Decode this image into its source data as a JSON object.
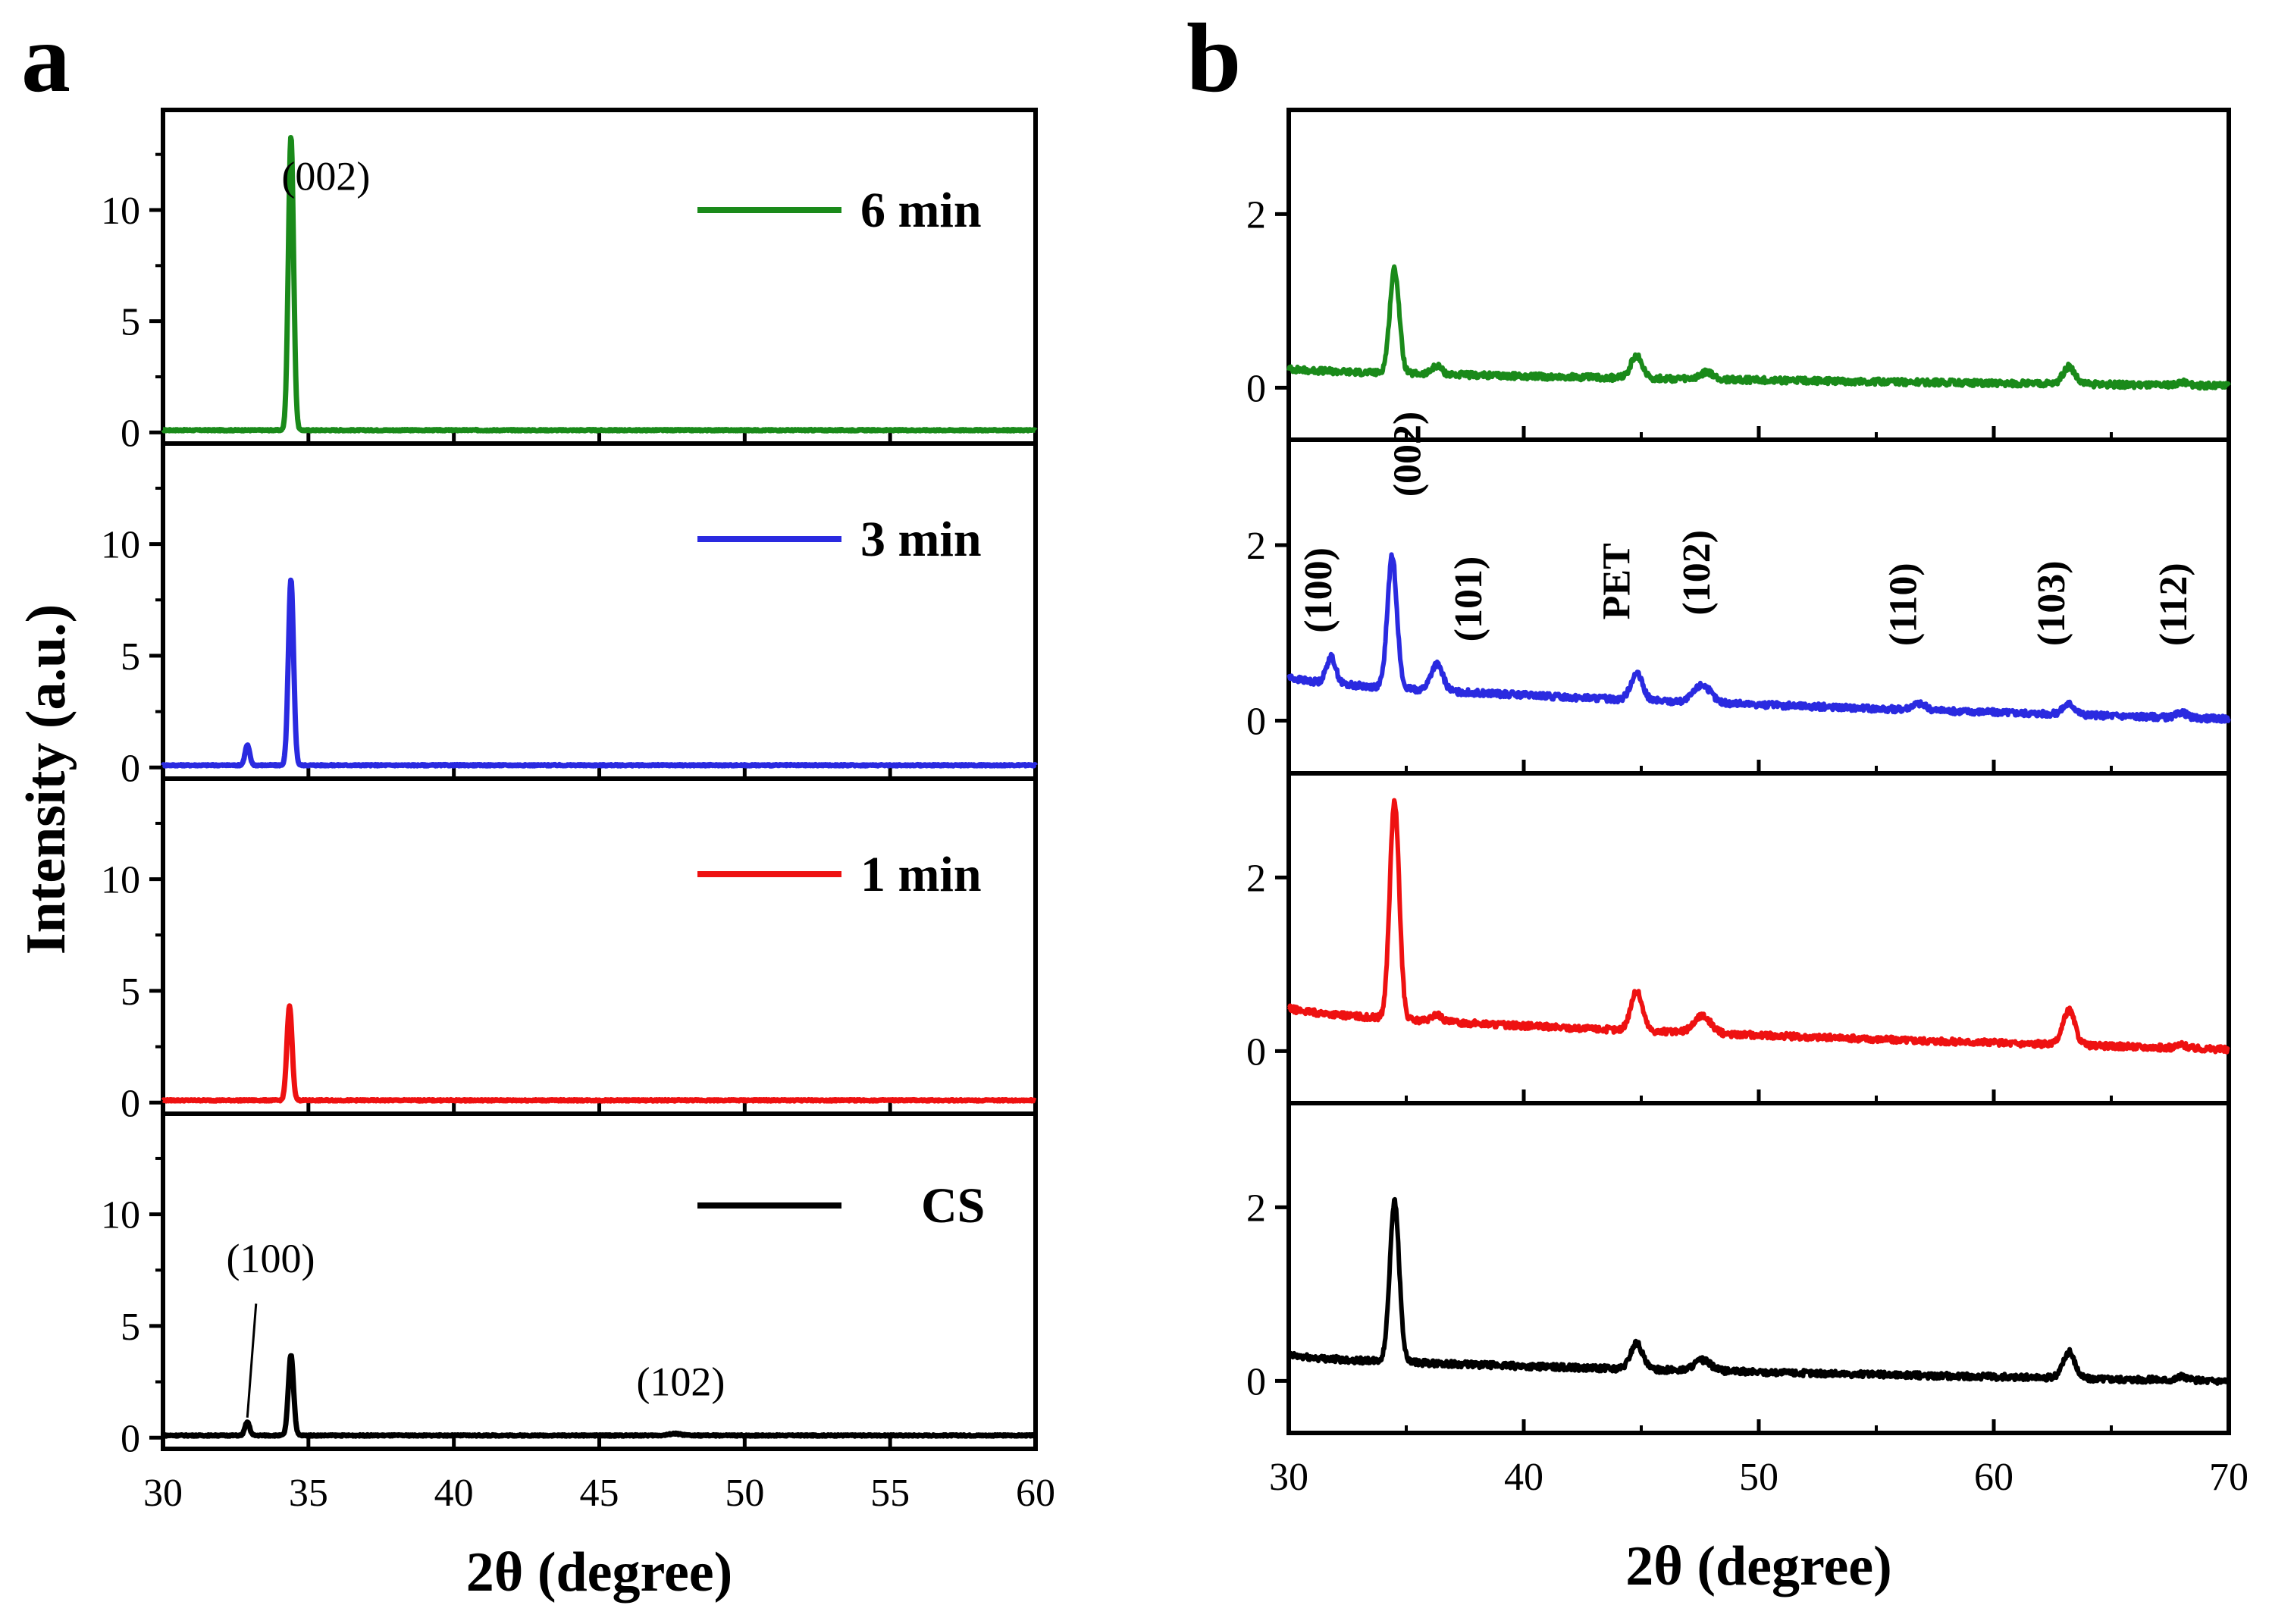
{
  "figure": {
    "colors": {
      "green": "#1a8a1a",
      "blue": "#2a2ae0",
      "red": "#ee1111",
      "black": "#000000"
    }
  },
  "chart_data": [
    {
      "type": "line",
      "panel_label": "a",
      "xlabel": "2θ (degree)",
      "ylabel": "Intensity (a.u.)",
      "xlim": [
        30,
        60
      ],
      "xticks": [
        30,
        35,
        40,
        45,
        50,
        55,
        60
      ],
      "xtick_labels": [
        "30",
        "35",
        "40",
        "45",
        "50",
        "55",
        "60"
      ],
      "ylim": [
        -0.5,
        14.5
      ],
      "yticks": [
        0,
        5,
        10
      ],
      "ytick_labels": [
        "0",
        "5",
        "10"
      ],
      "panels": [
        {
          "name": "6 min",
          "color": "#1a8a1a",
          "legend": "6 min",
          "baseline": 0.1,
          "peaks": [
            [
              34.4,
              13.2,
              0.09
            ]
          ],
          "annotations": [
            {
              "text": "(002)",
              "x": 35.6,
              "y": 10.9
            }
          ]
        },
        {
          "name": "3 min",
          "color": "#2a2ae0",
          "legend": "3 min",
          "baseline": 0.1,
          "peaks": [
            [
              32.9,
              0.9,
              0.08
            ],
            [
              34.4,
              8.3,
              0.09
            ]
          ],
          "annotations": []
        },
        {
          "name": "1 min",
          "color": "#ee1111",
          "legend": "1 min",
          "baseline": 0.1,
          "peaks": [
            [
              34.35,
              4.2,
              0.09
            ]
          ],
          "annotations": []
        },
        {
          "name": "CS",
          "color": "#000000",
          "legend": "CS",
          "baseline": 0.1,
          "peaks": [
            [
              32.9,
              0.6,
              0.08
            ],
            [
              34.4,
              3.6,
              0.09
            ],
            [
              47.6,
              0.08,
              0.2
            ]
          ],
          "annotations": [
            {
              "text": "(100)",
              "x": 33.7,
              "y": 7.4
            },
            {
              "text": "(102)",
              "x": 47.8,
              "y": 1.9
            }
          ]
        }
      ]
    },
    {
      "type": "line",
      "panel_label": "b",
      "xlabel": "2θ (degree)",
      "xlim": [
        30,
        70
      ],
      "xticks": [
        30,
        40,
        50,
        60,
        70
      ],
      "xtick_labels": [
        "30",
        "40",
        "50",
        "60",
        "70"
      ],
      "ylim": [
        -0.6,
        3.2
      ],
      "yticks": [
        0,
        2
      ],
      "ytick_labels": [
        "0",
        "2"
      ],
      "panels": [
        {
          "name": "6 min",
          "color": "#1a8a1a",
          "baseline_start": 0.22,
          "baseline_end": 0.02,
          "peaks": [
            [
              34.5,
              1.2,
              0.2
            ],
            [
              36.3,
              0.1,
              0.2
            ],
            [
              44.8,
              0.25,
              0.25
            ],
            [
              47.8,
              0.08,
              0.25
            ],
            [
              63.2,
              0.2,
              0.25
            ],
            [
              68.0,
              0.04,
              0.2
            ]
          ],
          "annotations": []
        },
        {
          "name": "3 min",
          "color": "#2a2ae0",
          "baseline_start": 0.5,
          "baseline_end": 0.02,
          "peaks": [
            [
              31.8,
              0.3,
              0.2
            ],
            [
              34.4,
              1.5,
              0.2
            ],
            [
              36.3,
              0.3,
              0.25
            ],
            [
              44.8,
              0.3,
              0.25
            ],
            [
              47.6,
              0.2,
              0.35
            ],
            [
              56.8,
              0.07,
              0.3
            ],
            [
              63.2,
              0.12,
              0.25
            ],
            [
              68.0,
              0.06,
              0.2
            ]
          ],
          "annotations": [
            {
              "text": "(100)",
              "x": 31.8,
              "y": 1.0
            },
            {
              "text": "(002)",
              "x": 35.6,
              "y": 2.55
            },
            {
              "text": "(101)",
              "x": 38.2,
              "y": 0.9
            },
            {
              "text": "PET",
              "x": 44.5,
              "y": 1.15
            },
            {
              "text": "(102)",
              "x": 47.9,
              "y": 1.2
            },
            {
              "text": "(110)",
              "x": 56.7,
              "y": 0.85
            },
            {
              "text": "(103)",
              "x": 63.0,
              "y": 0.85
            },
            {
              "text": "(112)",
              "x": 68.2,
              "y": 0.85
            }
          ]
        },
        {
          "name": "1 min",
          "color": "#ee1111",
          "baseline_start": 0.5,
          "baseline_end": 0.02,
          "peaks": [
            [
              34.5,
              2.5,
              0.2
            ],
            [
              36.3,
              0.08,
              0.2
            ],
            [
              44.8,
              0.45,
              0.25
            ],
            [
              47.6,
              0.2,
              0.35
            ],
            [
              63.2,
              0.4,
              0.25
            ],
            [
              68.0,
              0.04,
              0.2
            ]
          ],
          "annotations": []
        },
        {
          "name": "CS",
          "color": "#000000",
          "baseline_start": 0.3,
          "baseline_end": 0.0,
          "peaks": [
            [
              34.5,
              1.85,
              0.2
            ],
            [
              44.8,
              0.3,
              0.25
            ],
            [
              47.6,
              0.12,
              0.35
            ],
            [
              63.2,
              0.3,
              0.25
            ],
            [
              68.0,
              0.04,
              0.2
            ]
          ],
          "annotations": []
        }
      ]
    }
  ]
}
